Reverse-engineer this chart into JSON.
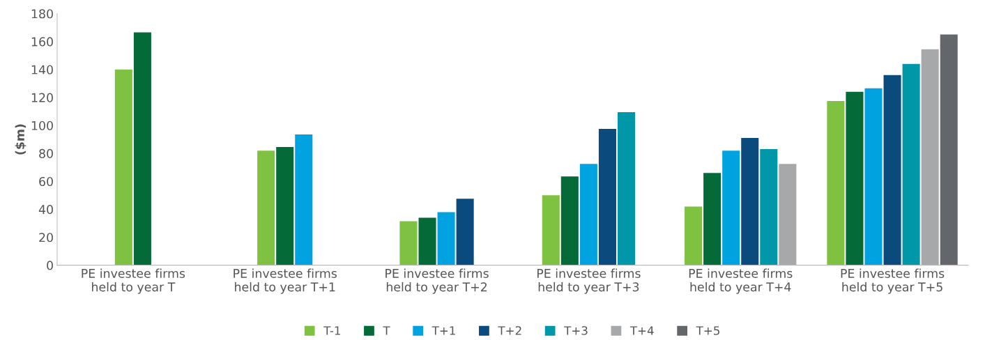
{
  "chart_data": {
    "type": "bar",
    "ylabel": "($m)",
    "categories": [
      "PE investee firms\nheld to year T",
      "PE investee firms\nheld to year T+1",
      "PE investee firms\nheld to year T+2",
      "PE investee firms\nheld to year T+3",
      "PE investee firms\nheld to year T+4",
      "PE investee firms\nheld to year T+5"
    ],
    "series": [
      {
        "name": "T-1",
        "color": "#7fc241",
        "values": [
          140,
          82,
          31.5,
          50,
          42,
          117.5
        ]
      },
      {
        "name": "T",
        "color": "#046a38",
        "values": [
          166.5,
          84.5,
          34,
          63.5,
          66,
          124
        ]
      },
      {
        "name": "T+1",
        "color": "#00a3e0",
        "values": [
          null,
          93.5,
          38,
          72.5,
          82,
          126.5
        ]
      },
      {
        "name": "T+2",
        "color": "#0b4a7c",
        "values": [
          null,
          null,
          47.5,
          97.5,
          91,
          136
        ]
      },
      {
        "name": "T+3",
        "color": "#0097a9",
        "values": [
          null,
          null,
          null,
          109.5,
          83,
          144
        ]
      },
      {
        "name": "T+4",
        "color": "#a7a8aa",
        "values": [
          null,
          null,
          null,
          null,
          72.5,
          154.5
        ]
      },
      {
        "name": "T+5",
        "color": "#63666a",
        "values": [
          null,
          null,
          null,
          null,
          null,
          165
        ]
      }
    ],
    "ylim": [
      0,
      180
    ],
    "yticks": [
      0,
      20,
      40,
      60,
      80,
      100,
      120,
      140,
      160,
      180
    ],
    "grid": false,
    "legend": "bottom"
  }
}
